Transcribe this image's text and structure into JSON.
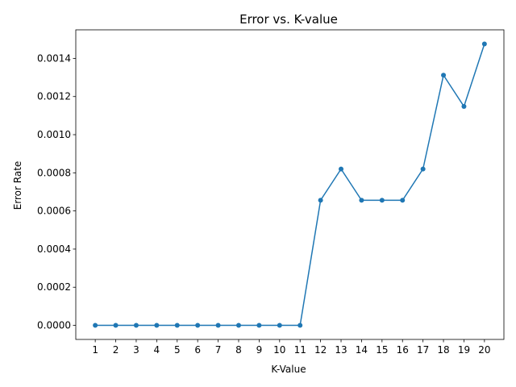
{
  "chart_data": {
    "type": "line",
    "title": "Error vs. K-value",
    "xlabel": "K-Value",
    "ylabel": "Error Rate",
    "x": [
      1,
      2,
      3,
      4,
      5,
      6,
      7,
      8,
      9,
      10,
      11,
      12,
      13,
      14,
      15,
      16,
      17,
      18,
      19,
      20
    ],
    "xticks": [
      "1",
      "2",
      "3",
      "4",
      "5",
      "6",
      "7",
      "8",
      "9",
      "10",
      "11",
      "12",
      "13",
      "14",
      "15",
      "16",
      "17",
      "18",
      "19",
      "20"
    ],
    "yticks": [
      "0.0000",
      "0.0002",
      "0.0004",
      "0.0006",
      "0.0008",
      "0.0010",
      "0.0012",
      "0.0014"
    ],
    "ytick_values": [
      0.0,
      0.0002,
      0.0004,
      0.0006,
      0.0008,
      0.001,
      0.0012,
      0.0014
    ],
    "series": [
      {
        "values": [
          0,
          0,
          0,
          0,
          0,
          0,
          0,
          0,
          0,
          0,
          0,
          0.000656,
          0.00082,
          0.000656,
          0.000656,
          0.000656,
          0.00082,
          0.001312,
          0.001148,
          0.001476
        ],
        "color": "#1f77b4",
        "marker": "circle"
      }
    ],
    "xlim": [
      0.05,
      20.95
    ],
    "ylim": [
      -7.38e-05,
      0.0015498
    ],
    "grid": false,
    "legend": "none"
  }
}
